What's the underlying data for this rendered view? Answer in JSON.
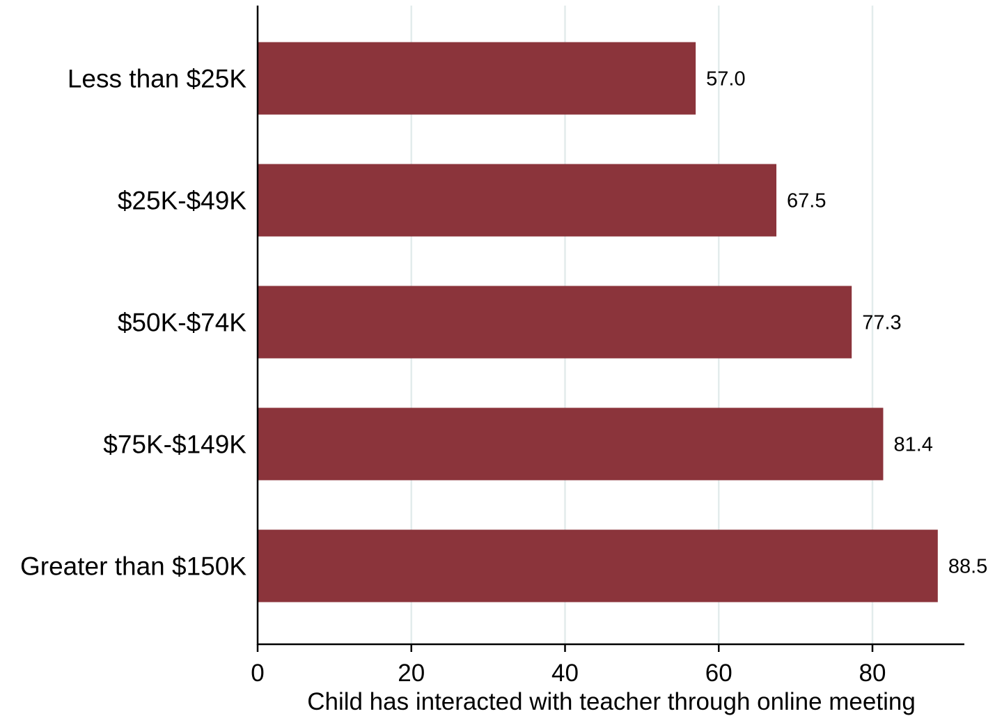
{
  "chart_data": {
    "type": "bar",
    "orientation": "horizontal",
    "categories": [
      "Less than $25K",
      "$25K-$49K",
      "$50K-$74K",
      "$75K-$149K",
      "Greater than $150K"
    ],
    "values": [
      57.0,
      67.5,
      77.3,
      81.4,
      88.5
    ],
    "value_labels": [
      "57.0",
      "67.5",
      "77.3",
      "81.4",
      "88.5"
    ],
    "xlabel": "Child has interacted with teacher through online meeting",
    "ylabel": "",
    "title": "",
    "xlim": [
      0,
      92
    ],
    "xticks": [
      0,
      20,
      40,
      60,
      80
    ],
    "xtick_labels": [
      "0",
      "20",
      "40",
      "60",
      "80"
    ],
    "grid": "vertical",
    "legend": "none",
    "colors": {
      "bar": "#8b343b",
      "grid": "#e3ecec",
      "axis": "#000000"
    }
  }
}
